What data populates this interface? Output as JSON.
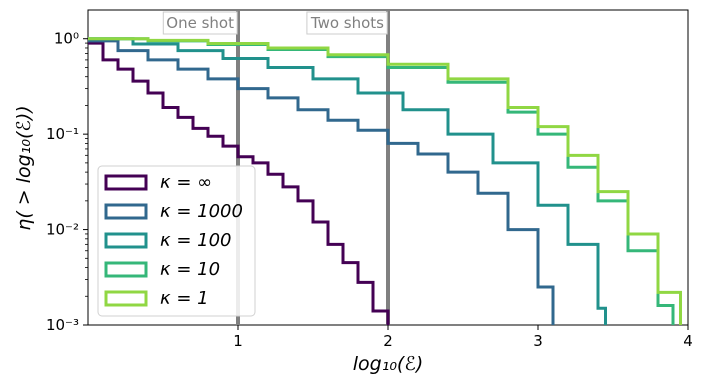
{
  "chart_data": {
    "type": "line",
    "subtype": "step-histogram",
    "xlabel": "log₁₀(ℰ)",
    "ylabel": "η( > log₁₀(ℰ))",
    "xlim": [
      0,
      4
    ],
    "ylim": [
      0.001,
      2
    ],
    "yscale": "log",
    "grid": false,
    "legend_position": "lower-left",
    "xticks": [
      {
        "value": 1,
        "label": "1"
      },
      {
        "value": 2,
        "label": "2"
      },
      {
        "value": 3,
        "label": "3"
      },
      {
        "value": 4,
        "label": "4"
      }
    ],
    "yticks": [
      {
        "value": 1,
        "label": "10⁰"
      },
      {
        "value": 0.1,
        "label": "10⁻¹"
      },
      {
        "value": 0.01,
        "label": "10⁻²"
      },
      {
        "value": 0.001,
        "label": "10⁻³"
      }
    ],
    "vlines": [
      {
        "x": 1,
        "label": "One shot",
        "color": "#808080"
      },
      {
        "x": 2,
        "label": "Two shots",
        "color": "#808080"
      }
    ],
    "series": [
      {
        "name": "κ = ∞",
        "color": "#440154",
        "x": [
          0,
          0.1,
          0.2,
          0.3,
          0.4,
          0.5,
          0.6,
          0.7,
          0.8,
          0.9,
          1.0,
          1.1,
          1.2,
          1.3,
          1.4,
          1.5,
          1.6,
          1.7,
          1.8,
          1.9,
          2.0
        ],
        "values": [
          0.9,
          0.6,
          0.48,
          0.36,
          0.27,
          0.19,
          0.15,
          0.115,
          0.095,
          0.075,
          0.058,
          0.05,
          0.038,
          0.028,
          0.02,
          0.012,
          0.007,
          0.0045,
          0.0028,
          0.0014,
          0.001
        ]
      },
      {
        "name": "κ = 1000",
        "color": "#31688e",
        "x": [
          0,
          0.2,
          0.4,
          0.6,
          0.8,
          1.0,
          1.2,
          1.4,
          1.6,
          1.8,
          2.0,
          2.2,
          2.4,
          2.6,
          2.8,
          3.0,
          3.1
        ],
        "values": [
          0.95,
          0.75,
          0.6,
          0.48,
          0.38,
          0.3,
          0.24,
          0.18,
          0.14,
          0.11,
          0.08,
          0.062,
          0.04,
          0.024,
          0.01,
          0.0025,
          0.001
        ]
      },
      {
        "name": "κ = 100",
        "color": "#21918c",
        "x": [
          0,
          0.3,
          0.6,
          0.9,
          1.2,
          1.5,
          1.8,
          2.1,
          2.4,
          2.7,
          3.0,
          3.2,
          3.4,
          3.45
        ],
        "values": [
          1.0,
          0.88,
          0.75,
          0.62,
          0.5,
          0.38,
          0.27,
          0.18,
          0.1,
          0.05,
          0.018,
          0.007,
          0.0015,
          0.001
        ]
      },
      {
        "name": "κ = 10",
        "color": "#35b779",
        "x": [
          0,
          0.4,
          0.8,
          1.2,
          1.6,
          2.0,
          2.4,
          2.8,
          3.0,
          3.2,
          3.4,
          3.6,
          3.8,
          3.9
        ],
        "values": [
          1.0,
          0.95,
          0.87,
          0.77,
          0.65,
          0.5,
          0.35,
          0.17,
          0.1,
          0.045,
          0.02,
          0.006,
          0.0016,
          0.001
        ]
      },
      {
        "name": "κ = 1",
        "color": "#90d743",
        "x": [
          0,
          0.4,
          0.8,
          1.2,
          1.6,
          2.0,
          2.4,
          2.8,
          3.0,
          3.2,
          3.4,
          3.6,
          3.8,
          3.95
        ],
        "values": [
          1.0,
          0.96,
          0.89,
          0.8,
          0.68,
          0.54,
          0.38,
          0.19,
          0.12,
          0.06,
          0.025,
          0.009,
          0.0022,
          0.001
        ]
      }
    ]
  }
}
